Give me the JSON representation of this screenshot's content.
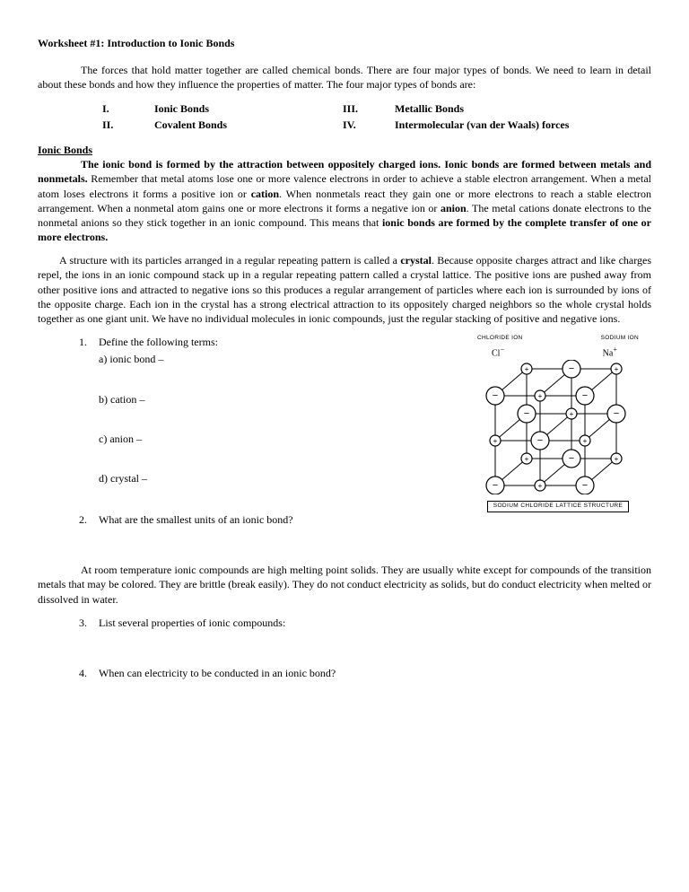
{
  "title": "Worksheet #1: Introduction to Ionic Bonds",
  "intro": "The forces that hold matter together are called chemical bonds.  There are four major types of bonds.  We need to learn in detail about these bonds and how they influence the properties of matter.  The four major types of bonds are:",
  "bondTypes": {
    "i": {
      "num": "I.",
      "name": "Ionic Bonds"
    },
    "ii": {
      "num": "II.",
      "name": "Covalent Bonds"
    },
    "iii": {
      "num": "III.",
      "name": "Metallic Bonds"
    },
    "iv": {
      "num": "IV.",
      "name": "Intermolecular (van der Waals) forces"
    }
  },
  "section": {
    "heading": "Ionic Bonds",
    "p1_bold_lead": "The ionic bond is formed by the attraction between oppositely charged ions.  Ionic bonds are formed between metals and nonmetals.",
    "p1_rest_a": "  Remember that metal atoms lose one or more valence electrons in order to achieve a stable electron arrangement.  When a metal atom loses electrons it forms a positive ion or ",
    "p1_cation": "cation",
    "p1_rest_b": ".  When nonmetals react they gain one or more electrons to reach a stable electron arrangement.  When a nonmetal atom gains one or more electrons it forms a negative ion or ",
    "p1_anion": "anion",
    "p1_rest_c": ". The metal cations donate electrons to the nonmetal anions so they stick together in an ionic compound.  This means that ",
    "p1_bold_end": "ionic bonds are formed by the complete transfer of one or more electrons.",
    "p2_a": "A structure with its particles arranged in a regular repeating pattern is called a ",
    "p2_crystal": "crystal",
    "p2_b": ".  Because opposite charges attract and like charges repel, the ions in an ionic compound stack up in a regular repeating pattern called a crystal lattice.  The positive ions are pushed away from other positive ions and attracted to negative ions so this produces a regular arrangement of particles where each ion is surrounded by ions of the opposite charge.  Each ion in the crystal has a strong electrical attraction to its oppositely charged neighbors so the whole crystal holds together as one giant unit.  We have no individual molecules in ionic compounds, just the regular stacking of positive and negative ions."
  },
  "questions": {
    "q1": {
      "num": "1.",
      "text": "Define the following terms:"
    },
    "q1a": "a) ionic bond –",
    "q1b": "b) cation –",
    "q1c": "c) anion –",
    "q1d": "d) crystal –",
    "q2": {
      "num": "2.",
      "text": "What are the smallest units of an ionic bond?"
    },
    "mid_para": "At room temperature ionic compounds are high melting point solids.  They are usually white except for compounds of the transition metals that may be colored.  They are brittle (break easily).  They do not conduct electricity as solids, but do conduct electricity when melted or dissolved in water.",
    "q3": {
      "num": "3.",
      "text": "List several properties of ionic compounds:"
    },
    "q4": {
      "num": "4.",
      "text": "When can electricity to be conducted in an ionic bond?"
    }
  },
  "diagram": {
    "chloride_label": "CHLORIDE ION",
    "sodium_label": "SODIUM ION",
    "cl": "Cl",
    "cl_sup": "−",
    "na": "Na",
    "na_sup": "+",
    "caption": "SODIUM CHLORIDE LATTICE STRUCTURE",
    "colors": {
      "stroke": "#000000",
      "fill_anion": "#ffffff",
      "fill_cation": "#000000",
      "bg": "#ffffff"
    }
  }
}
